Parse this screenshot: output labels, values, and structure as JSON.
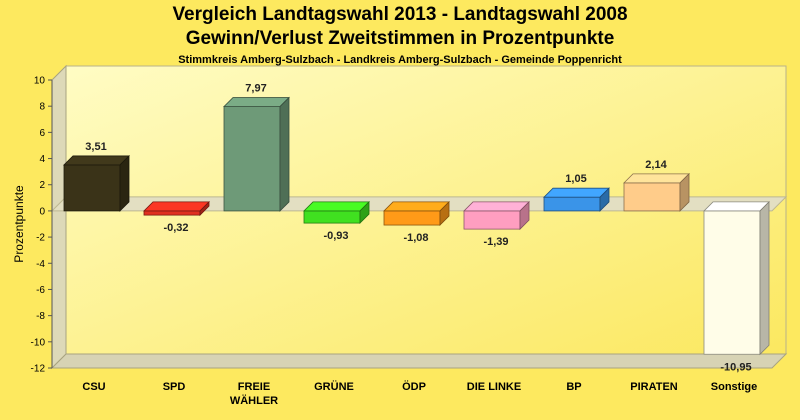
{
  "title": "Vergleich Landtagswahl 2013 - Landtagswahl 2008",
  "subtitle": "Gewinn/Verlust Zweitstimmen in Prozentpunkte",
  "subsubtitle": "Stimmkreis Amberg-Sulzbach - Landkreis Amberg-Sulzbach - Gemeinde Poppenricht",
  "chart_data": {
    "type": "bar",
    "title": "Vergleich Landtagswahl 2013 - Landtagswahl 2008",
    "subtitle": "Gewinn/Verlust Zweitstimmen in Prozentpunkte",
    "ylabel": "Prozentpunkte",
    "xlabel": "",
    "ylim": [
      -12,
      10
    ],
    "yticks": [
      10,
      8,
      6,
      4,
      2,
      0,
      -2,
      -4,
      -6,
      -8,
      -10,
      -12
    ],
    "categories": [
      "CSU",
      "SPD",
      "FREIE WÄHLER",
      "GRÜNE",
      "ÖDP",
      "DIE LINKE",
      "BP",
      "PIRATEN",
      "Sonstige"
    ],
    "category_lines": [
      [
        "CSU"
      ],
      [
        "SPD"
      ],
      [
        "FREIE",
        "WÄHLER"
      ],
      [
        "GRÜNE"
      ],
      [
        "ÖDP"
      ],
      [
        "DIE LINKE"
      ],
      [
        "BP"
      ],
      [
        "PIRATEN"
      ],
      [
        "Sonstige"
      ]
    ],
    "values": [
      3.51,
      -0.32,
      7.97,
      -0.93,
      -1.08,
      -1.39,
      1.05,
      2.14,
      -10.95
    ],
    "value_labels": [
      "3,51",
      "-0,32",
      "7,97",
      "-0,93",
      "-1,08",
      "-1,39",
      "1,05",
      "2,14",
      "-10,95"
    ],
    "colors": [
      "#3a3318",
      "#e03020",
      "#6e9a78",
      "#40e020",
      "#ff9a18",
      "#ff9ec0",
      "#3a94e8",
      "#ffcc8a",
      "#fffde8"
    ],
    "grid": false,
    "legend": "none"
  }
}
